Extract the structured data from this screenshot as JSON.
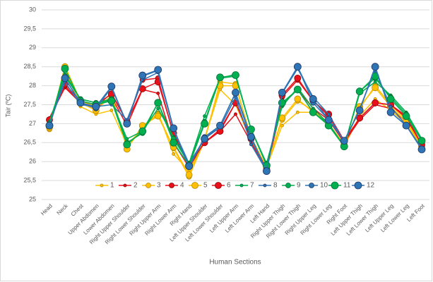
{
  "chart_data": {
    "type": "line",
    "y_label": "Tair (ºC)",
    "x_label": "Human Sections",
    "categories": [
      "Head",
      "Neck",
      "Chest",
      "Upper Abdomen",
      "Lower Abdomen",
      "Right Upper Shoulder",
      "Right Lower Shoulder",
      "Right Upper Arm",
      "Right Lower Arm",
      "Right Hand",
      "Left Upper Shoulder",
      "Left Lower Shoulder",
      "Left Upper Arm",
      "Left Lower Arm",
      "Left Hand",
      "Right Upper Thigh",
      "Right Lower Thigh",
      "Right Upper Leg",
      "Right Lower Leg",
      "Right Foot",
      "Left Upper Thigh",
      "Left Lower Thigh",
      "Left Upper Leg",
      "Left Lower Leg",
      "Left Foot"
    ],
    "ylim": [
      25,
      30
    ],
    "yticks": [
      25,
      {
        "value": 25.5,
        "label": "25,5"
      },
      26,
      {
        "value": 26.5,
        "label": "26,5"
      },
      27,
      {
        "value": 27.5,
        "label": "27,5"
      },
      28,
      {
        "value": 28.5,
        "label": "28,5"
      },
      29,
      {
        "value": 29.5,
        "label": "29,5"
      },
      30
    ],
    "grid": true,
    "legend": "bottom",
    "series": [
      {
        "name": "1",
        "color": "#ffc000",
        "values": [
          26.95,
          28.45,
          27.45,
          27.25,
          27.35,
          26.45,
          26.85,
          27.3,
          26.2,
          25.75,
          26.6,
          27.9,
          27.5,
          26.55,
          25.85,
          26.95,
          27.3,
          27.3,
          27.0,
          26.4,
          27.2,
          27.65,
          27.35,
          27.0,
          26.4
        ]
      },
      {
        "name": "2",
        "color": "#e8111b",
        "values": [
          27.15,
          27.95,
          27.55,
          27.4,
          27.7,
          26.95,
          27.9,
          27.8,
          26.5,
          25.85,
          26.5,
          26.8,
          27.25,
          26.5,
          25.8,
          27.5,
          27.9,
          27.4,
          27.1,
          26.5,
          27.1,
          27.5,
          27.4,
          27.05,
          26.45
        ]
      },
      {
        "name": "3",
        "color": "#ffc000",
        "values": [
          26.85,
          28.52,
          27.6,
          27.45,
          27.8,
          26.35,
          26.9,
          27.25,
          26.35,
          25.6,
          26.55,
          28.1,
          28.05,
          26.6,
          25.85,
          27.1,
          27.6,
          27.35,
          27.0,
          26.45,
          27.4,
          28.0,
          27.5,
          27.1,
          26.4
        ]
      },
      {
        "name": "4",
        "color": "#e8111b",
        "values": [
          27.1,
          28.0,
          27.55,
          27.45,
          27.8,
          27.05,
          28.15,
          28.2,
          26.7,
          25.9,
          26.5,
          26.85,
          27.55,
          26.6,
          25.8,
          27.7,
          28.15,
          27.6,
          27.2,
          26.5,
          27.15,
          27.55,
          27.5,
          27.15,
          26.45
        ]
      },
      {
        "name": "5",
        "color": "#ffc000",
        "values": [
          26.9,
          28.5,
          27.55,
          27.35,
          27.75,
          26.33,
          26.95,
          27.2,
          26.38,
          25.65,
          26.6,
          28.0,
          28.0,
          26.65,
          25.85,
          27.15,
          27.65,
          27.3,
          27.0,
          26.45,
          27.45,
          27.95,
          27.45,
          27.05,
          26.4
        ]
      },
      {
        "name": "6",
        "color": "#e8111b",
        "values": [
          27.1,
          28.05,
          27.6,
          27.5,
          27.78,
          27.05,
          27.92,
          28.1,
          26.75,
          25.9,
          26.5,
          26.8,
          27.55,
          26.6,
          25.8,
          27.75,
          28.2,
          27.6,
          27.25,
          26.55,
          27.15,
          27.55,
          27.5,
          27.2,
          26.45
        ]
      },
      {
        "name": "7",
        "color": "#00b050",
        "values": [
          27.05,
          28.3,
          27.65,
          27.55,
          27.6,
          26.6,
          26.8,
          27.4,
          26.65,
          25.95,
          27.2,
          28.2,
          28.25,
          26.85,
          25.95,
          27.45,
          27.95,
          27.4,
          27.0,
          26.4,
          27.8,
          28.1,
          27.75,
          27.3,
          26.6
        ]
      },
      {
        "name": "8",
        "color": "#2e75b6",
        "values": [
          27.0,
          28.1,
          27.5,
          27.45,
          27.5,
          27.1,
          28.15,
          28.35,
          26.85,
          25.95,
          26.6,
          26.9,
          27.7,
          26.45,
          25.75,
          27.8,
          28.45,
          27.7,
          27.25,
          26.5,
          27.4,
          28.4,
          27.45,
          26.95,
          26.35
        ]
      },
      {
        "name": "9",
        "color": "#00b050",
        "values": [
          27.0,
          28.25,
          27.65,
          27.55,
          27.65,
          26.5,
          26.75,
          27.55,
          26.6,
          25.95,
          27.05,
          28.2,
          28.3,
          26.85,
          25.95,
          27.5,
          27.9,
          27.3,
          27.0,
          26.4,
          27.85,
          28.2,
          27.7,
          27.25,
          26.55
        ]
      },
      {
        "name": "10",
        "color": "#2e75b6",
        "values": [
          26.95,
          28.2,
          27.55,
          27.4,
          27.95,
          27.0,
          28.25,
          28.4,
          26.85,
          25.85,
          26.65,
          26.95,
          27.8,
          26.6,
          25.75,
          27.8,
          28.5,
          27.55,
          27.1,
          26.55,
          27.35,
          28.5,
          27.3,
          26.95,
          26.35
        ]
      },
      {
        "name": "11",
        "color": "#00b050",
        "values": [
          26.95,
          28.45,
          27.6,
          27.5,
          27.6,
          26.45,
          26.8,
          27.55,
          26.5,
          25.9,
          27.0,
          28.22,
          28.28,
          26.85,
          25.9,
          27.55,
          27.9,
          27.3,
          26.95,
          26.4,
          27.85,
          28.25,
          27.65,
          27.2,
          26.55
        ]
      },
      {
        "name": "12",
        "color": "#2e75b6",
        "values": [
          26.95,
          28.2,
          27.55,
          27.45,
          27.98,
          27.0,
          28.27,
          28.42,
          26.88,
          25.88,
          26.6,
          26.95,
          27.82,
          26.65,
          25.75,
          27.82,
          28.5,
          27.65,
          27.1,
          26.55,
          27.35,
          28.5,
          27.3,
          26.95,
          26.32
        ]
      }
    ]
  }
}
